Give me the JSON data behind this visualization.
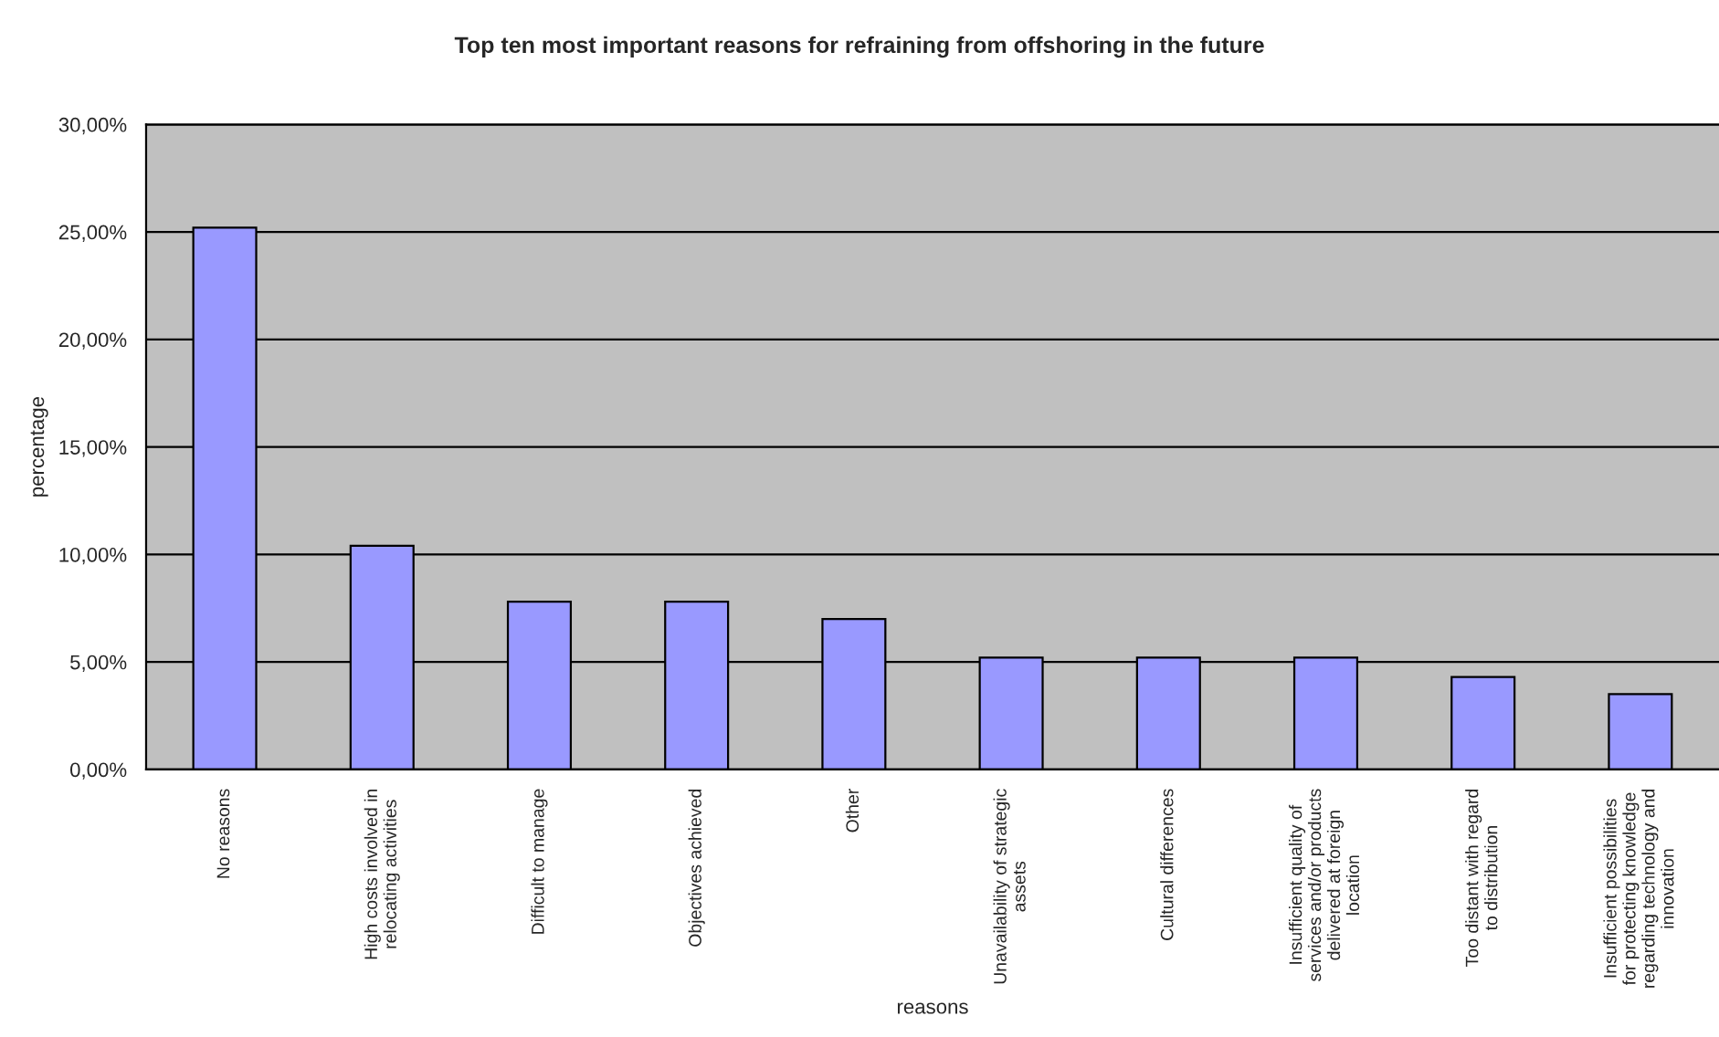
{
  "chart_data": {
    "type": "bar",
    "title": "Top ten most important reasons for refraining from offshoring in the future",
    "xlabel": "reasons",
    "ylabel": "percentage",
    "categories": [
      "No reasons",
      "High costs involved in\nrelocating activities",
      "Difficult to manage",
      "Objectives achieved",
      "Other",
      "Unavailability of strategic\nassets",
      "Cultural differences",
      "Insufficient quality of\nservices and/or products\ndelivered at foreign\nlocation",
      "Too distant with regard\nto distribution",
      "Insufficient possibilities\nfor protecting knowledge\nregarding technology and\ninnovation"
    ],
    "values": [
      25.2,
      10.4,
      7.8,
      7.8,
      7.0,
      5.2,
      5.2,
      5.2,
      4.3,
      3.5
    ],
    "color": "#9999ff",
    "ylim": [
      0,
      30
    ],
    "yticks": [
      {
        "value": 0,
        "label": "0,00%"
      },
      {
        "value": 5,
        "label": "5,00%"
      },
      {
        "value": 10,
        "label": "10,00%"
      },
      {
        "value": 15,
        "label": "15,00%"
      },
      {
        "value": 20,
        "label": "20,00%"
      },
      {
        "value": 25,
        "label": "25,00%"
      },
      {
        "value": 30,
        "label": "30,00%"
      }
    ],
    "grid": "y"
  }
}
